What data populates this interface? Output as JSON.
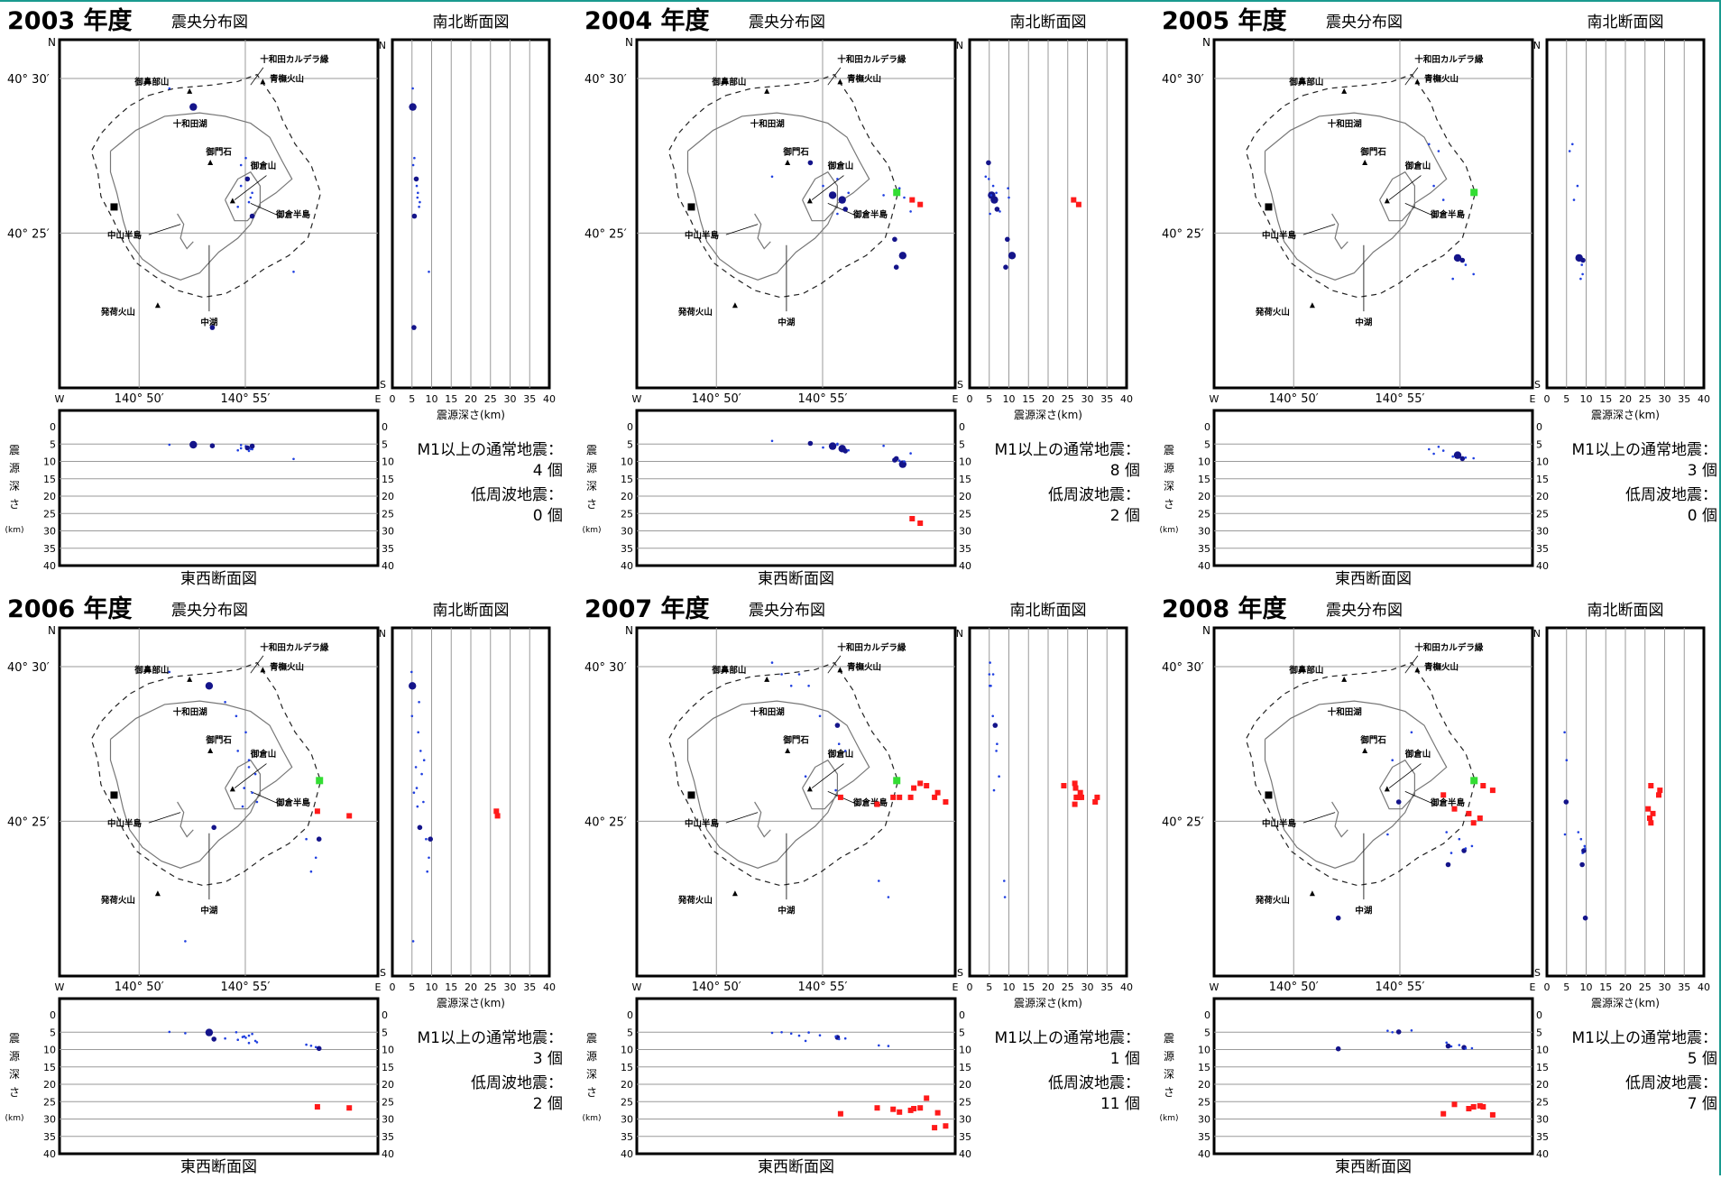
{
  "labels": {
    "epicenter_title": "震央分布図",
    "ns_title": "南北断面図",
    "ew_title": "東西断面図",
    "depth_axis_title": "震源深さ(km)",
    "depth_vertical": [
      "震",
      "源",
      "深",
      "さ"
    ],
    "km_unit": "(km)",
    "lat_30": "40° 30′",
    "lat_25": "40° 25′",
    "lon_50": "140° 50′",
    "lon_55": "140° 55′",
    "W": "W",
    "E": "E",
    "N": "N",
    "S": "S",
    "m1_label": "M1以上の通常地震：",
    "low_freq_label": "低周波地震：",
    "count_unit": "個",
    "year_suffix": " 年度",
    "places": {
      "caldera": "十和田カルデラ縁",
      "aomori": "青橅火山",
      "ohanabe": "御鼻部山",
      "lake": "十和田湖",
      "gomon": "御門石",
      "ogura": "御倉山",
      "ogura_peninsula": "御倉半島",
      "nakayama": "中山半島",
      "nakaumi": "中湖",
      "hakka": "発荷火山"
    }
  },
  "colors": {
    "normal_small": "#1f3fe0",
    "normal_large": "#14148a",
    "low_freq": "#ff1a1a",
    "station": "#33dd33",
    "grid": "#9a9a9a",
    "frame": "#000000"
  },
  "ticks": {
    "depth": [
      0,
      5,
      10,
      15,
      20,
      25,
      30,
      35,
      40
    ]
  },
  "chart_data": [
    {
      "type": "scatter",
      "year": "2003",
      "m1_count": "4",
      "low_freq_count": "0",
      "station": false,
      "normal": [
        [
          140.884,
          40.471,
          5.2,
          2
        ],
        [
          140.869,
          40.479,
          5.2,
          0
        ],
        [
          140.914,
          40.446,
          5.3,
          0
        ],
        [
          140.917,
          40.449,
          5.6,
          0
        ],
        [
          140.914,
          40.437,
          6.2,
          0
        ],
        [
          140.918,
          40.44,
          6.1,
          1
        ],
        [
          140.92,
          40.432,
          6.4,
          0
        ],
        [
          140.912,
          40.428,
          6.8,
          0
        ],
        [
          140.919,
          40.43,
          7.0,
          0
        ],
        [
          140.921,
          40.434,
          6.5,
          0
        ],
        [
          140.921,
          40.424,
          5.6,
          1
        ],
        [
          140.947,
          40.4,
          9.3,
          0
        ],
        [
          140.896,
          40.376,
          5.5,
          1
        ]
      ],
      "low": []
    },
    {
      "type": "scatter",
      "year": "2004",
      "m1_count": "8",
      "low_freq_count": "2",
      "station": true,
      "normal": [
        [
          140.909,
          40.447,
          4.8,
          1
        ],
        [
          140.885,
          40.441,
          4.1,
          0
        ],
        [
          140.917,
          40.437,
          6.0,
          0
        ],
        [
          140.923,
          40.433,
          5.6,
          2
        ],
        [
          140.929,
          40.431,
          6.3,
          2
        ],
        [
          140.931,
          40.427,
          7.0,
          1
        ],
        [
          140.926,
          40.425,
          5.2,
          0
        ],
        [
          140.933,
          40.434,
          6.8,
          0
        ],
        [
          140.926,
          40.44,
          4.9,
          0
        ],
        [
          140.955,
          40.433,
          5.5,
          0
        ],
        [
          140.962,
          40.414,
          9.6,
          1
        ],
        [
          140.967,
          40.407,
          10.8,
          2
        ],
        [
          140.963,
          40.402,
          9.2,
          1
        ],
        [
          140.968,
          40.432,
          10.0,
          0
        ],
        [
          140.965,
          40.436,
          9.8,
          0
        ],
        [
          140.972,
          40.426,
          7.7,
          0
        ]
      ],
      "low": [
        [
          140.973,
          40.431,
          26.5
        ],
        [
          140.978,
          40.429,
          27.8
        ]
      ]
    },
    {
      "type": "scatter",
      "year": "2005",
      "m1_count": "3",
      "low_freq_count": "0",
      "station": true,
      "normal": [
        [
          140.935,
          40.455,
          6.5,
          0
        ],
        [
          140.941,
          40.452,
          5.8,
          0
        ],
        [
          140.938,
          40.437,
          7.8,
          0
        ],
        [
          140.944,
          40.431,
          6.9,
          0
        ],
        [
          140.953,
          40.406,
          8.2,
          2
        ],
        [
          140.956,
          40.405,
          9.2,
          1
        ],
        [
          140.958,
          40.403,
          8.9,
          0
        ],
        [
          140.95,
          40.397,
          8.6,
          0
        ],
        [
          140.963,
          40.399,
          9.1,
          0
        ]
      ],
      "low": []
    },
    {
      "type": "scatter",
      "year": "2006",
      "m1_count": "3",
      "low_freq_count": "2",
      "station": true,
      "normal": [
        [
          140.869,
          40.481,
          4.9,
          0
        ],
        [
          140.894,
          40.475,
          5.1,
          2
        ],
        [
          140.904,
          40.468,
          6.8,
          0
        ],
        [
          140.911,
          40.462,
          5.0,
          0
        ],
        [
          140.917,
          40.455,
          6.6,
          0
        ],
        [
          140.912,
          40.447,
          7.2,
          0
        ],
        [
          140.919,
          40.44,
          6.0,
          0
        ],
        [
          140.916,
          40.431,
          6.2,
          0
        ],
        [
          140.923,
          40.437,
          7.5,
          0
        ],
        [
          140.921,
          40.429,
          5.5,
          0
        ],
        [
          140.915,
          40.423,
          6.4,
          0
        ],
        [
          140.924,
          40.425,
          7.9,
          0
        ],
        [
          140.919,
          40.443,
          8.1,
          0
        ],
        [
          140.897,
          40.414,
          7.0,
          1
        ],
        [
          140.955,
          40.409,
          8.6,
          0
        ],
        [
          140.961,
          40.401,
          9.3,
          0
        ],
        [
          140.963,
          40.409,
          9.7,
          1
        ],
        [
          140.958,
          40.395,
          8.9,
          0
        ],
        [
          140.879,
          40.365,
          5.3,
          0
        ]
      ],
      "low": [
        [
          140.962,
          40.421,
          26.5
        ],
        [
          140.982,
          40.419,
          26.8
        ]
      ]
    },
    {
      "type": "scatter",
      "year": "2007",
      "m1_count": "1",
      "low_freq_count": "11",
      "station": true,
      "normal": [
        [
          140.885,
          40.485,
          5.2,
          0
        ],
        [
          140.891,
          40.48,
          5.0,
          0
        ],
        [
          140.897,
          40.475,
          5.4,
          0
        ],
        [
          140.902,
          40.48,
          6.0,
          0
        ],
        [
          140.908,
          40.475,
          5.1,
          0
        ],
        [
          140.915,
          40.462,
          5.9,
          0
        ],
        [
          140.926,
          40.458,
          6.5,
          1
        ],
        [
          140.927,
          40.45,
          7.0,
          0
        ],
        [
          140.931,
          40.447,
          6.8,
          0
        ],
        [
          140.906,
          40.436,
          7.5,
          0
        ],
        [
          140.925,
          40.43,
          6.2,
          0
        ],
        [
          140.958,
          40.384,
          9.0,
          0
        ],
        [
          140.952,
          40.391,
          8.8,
          0
        ]
      ],
      "low": [
        [
          140.928,
          40.427,
          28.5
        ],
        [
          140.951,
          40.424,
          26.8
        ],
        [
          140.961,
          40.427,
          27.2
        ],
        [
          140.965,
          40.427,
          28.0
        ],
        [
          140.972,
          40.427,
          27.5
        ],
        [
          140.974,
          40.431,
          27.0
        ],
        [
          140.978,
          40.433,
          26.8
        ],
        [
          140.982,
          40.432,
          24.0
        ],
        [
          140.987,
          40.427,
          32.5
        ],
        [
          140.989,
          40.429,
          28.2
        ],
        [
          140.994,
          40.425,
          32.0
        ]
      ],
      "_": null
    },
    {
      "type": "scatter",
      "year": "2008",
      "m1_count": "5",
      "low_freq_count": "7",
      "station": true,
      "normal": [
        [
          140.924,
          40.455,
          4.5,
          0
        ],
        [
          140.912,
          40.443,
          5.0,
          0
        ],
        [
          140.916,
          40.425,
          4.9,
          1
        ],
        [
          140.909,
          40.411,
          4.6,
          0
        ],
        [
          140.946,
          40.412,
          8.0,
          0
        ],
        [
          140.949,
          40.403,
          9.1,
          0
        ],
        [
          140.957,
          40.404,
          9.4,
          1
        ],
        [
          140.954,
          40.409,
          8.7,
          0
        ],
        [
          140.958,
          40.405,
          9.7,
          0
        ],
        [
          140.962,
          40.406,
          9.6,
          0
        ],
        [
          140.947,
          40.398,
          9.0,
          1
        ],
        [
          140.878,
          40.375,
          9.8,
          1
        ]
      ],
      "low": [
        [
          140.944,
          40.428,
          28.5
        ],
        [
          140.951,
          40.422,
          25.8
        ],
        [
          140.96,
          40.42,
          27.0
        ],
        [
          140.963,
          40.416,
          26.5
        ],
        [
          140.967,
          40.418,
          26.2
        ],
        [
          140.975,
          40.43,
          28.8
        ],
        [
          140.969,
          40.432,
          26.5
        ]
      ]
    }
  ]
}
